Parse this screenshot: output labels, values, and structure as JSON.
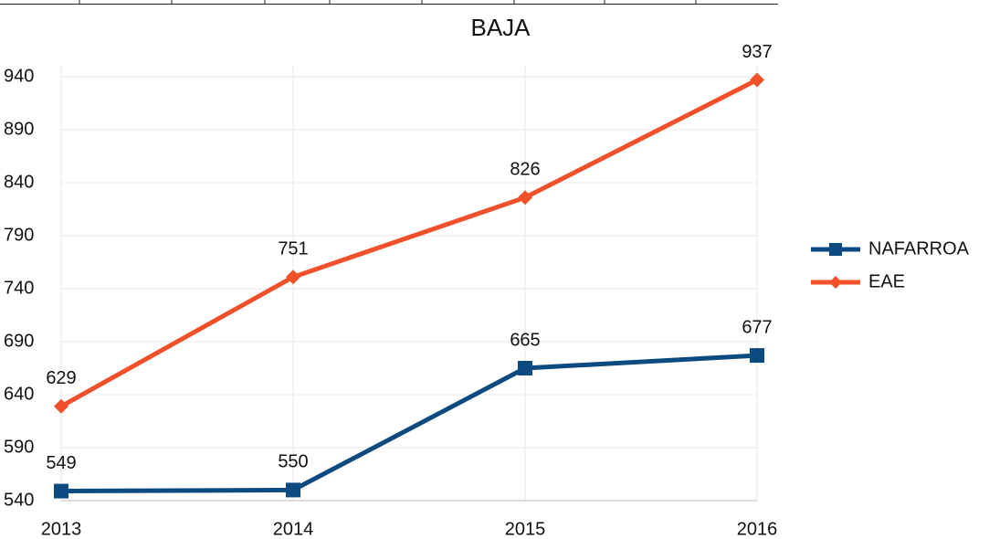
{
  "chart_data": {
    "type": "line",
    "title": "BAJA",
    "categories": [
      "2013",
      "2014",
      "2015",
      "2016"
    ],
    "series": [
      {
        "name": "NAFARROA",
        "color": "#0d4a7f",
        "marker": "square",
        "values": [
          549,
          550,
          665,
          677
        ]
      },
      {
        "name": "EAE",
        "color": "#f0502a",
        "marker": "diamond",
        "values": [
          629,
          751,
          826,
          937
        ]
      }
    ],
    "ylim": [
      540,
      950
    ],
    "yticks": [
      540,
      590,
      640,
      690,
      740,
      790,
      840,
      890,
      940
    ],
    "grid": true,
    "legend": "right"
  }
}
